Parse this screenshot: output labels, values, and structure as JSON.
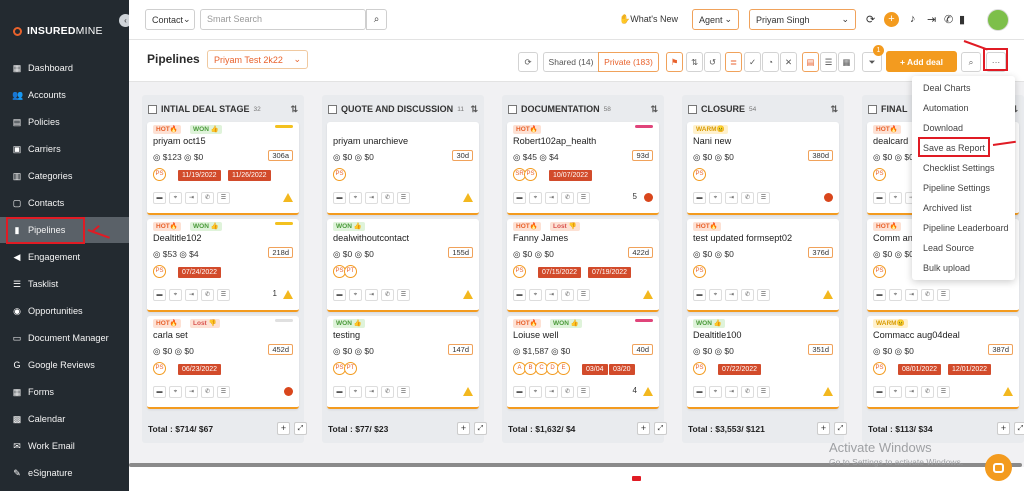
{
  "app": {
    "logo_bold": "INSURED",
    "logo_light": "MINE",
    "collapse": "‹"
  },
  "sidebar": {
    "items": [
      {
        "label": "Dashboard",
        "icon": "dashboard-icon",
        "glyph": "▦"
      },
      {
        "label": "Accounts",
        "icon": "accounts-icon",
        "glyph": "👥"
      },
      {
        "label": "Policies",
        "icon": "policies-icon",
        "glyph": "▤"
      },
      {
        "label": "Carriers",
        "icon": "carriers-icon",
        "glyph": "▣"
      },
      {
        "label": "Categories",
        "icon": "categories-icon",
        "glyph": "▥"
      },
      {
        "label": "Contacts",
        "icon": "contacts-icon",
        "glyph": "▢"
      },
      {
        "label": "Pipelines",
        "icon": "pipelines-icon",
        "glyph": "▮"
      },
      {
        "label": "Engagement",
        "icon": "megaphone-icon",
        "glyph": "◀"
      },
      {
        "label": "Tasklist",
        "icon": "tasklist-icon",
        "glyph": "☰"
      },
      {
        "label": "Opportunities",
        "icon": "opportunities-icon",
        "glyph": "◉"
      },
      {
        "label": "Document Manager",
        "icon": "folder-icon",
        "glyph": "▭"
      },
      {
        "label": "Google Reviews",
        "icon": "google-icon",
        "glyph": "G"
      },
      {
        "label": "Forms",
        "icon": "forms-icon",
        "glyph": "▦"
      },
      {
        "label": "Calendar",
        "icon": "calendar-icon",
        "glyph": "▩"
      },
      {
        "label": "Work Email",
        "icon": "email-icon",
        "glyph": "✉"
      },
      {
        "label": "eSignature",
        "icon": "signature-icon",
        "glyph": "✎"
      }
    ]
  },
  "topbar": {
    "search_scope": "Contact",
    "search_placeholder": "Smart Search",
    "whats_new": "What's New",
    "role": "Agent",
    "user": "Priyam Singh"
  },
  "subbar": {
    "title": "Pipelines",
    "pipeline": "Priyam Test 2k22",
    "shared": "Shared (14)",
    "private": "Private (183)",
    "filter_badge": "1",
    "add_deal": "+ Add deal",
    "more": "···"
  },
  "columns": [
    {
      "name": "INTIAL DEAL STAGE",
      "count": "32",
      "total": "Total : $714/ $67",
      "cards": [
        {
          "tags": [
            {
              "t": "HOT🔥",
              "c": "hot"
            },
            {
              "t": "WON 👍",
              "c": "won"
            }
          ],
          "stripe": "#f3c11f",
          "name": "priyam oct15",
          "money": "◎ $123 ◎ $0",
          "days": "306a",
          "avatars": [
            "PS"
          ],
          "dates": [
            "11/19/2022",
            "11/26/2022"
          ],
          "end": "warn"
        },
        {
          "tags": [
            {
              "t": "HOT🔥",
              "c": "hot"
            },
            {
              "t": "WON 👍",
              "c": "won"
            }
          ],
          "stripe": "#f3c11f",
          "name": "Dealtitle102",
          "money": "◎ $53 ◎ $4",
          "days": "218d",
          "avatars": [
            "PS"
          ],
          "dates": [
            "07/24/2022"
          ],
          "end": "warn",
          "extra": "1"
        },
        {
          "tags": [
            {
              "t": "HOT🔥",
              "c": "hot"
            },
            {
              "t": "Lost 👎",
              "c": "lost"
            }
          ],
          "stripe": "#e0e0e0",
          "name": "carla set",
          "money": "◎ $0 ◎ $0",
          "days": "452d",
          "avatars": [
            "PS"
          ],
          "dates": [
            "06/23/2022"
          ],
          "end": "red"
        }
      ]
    },
    {
      "name": "QUOTE AND DISCUSSION",
      "count": "11",
      "total": "Total : $77/ $23",
      "cards": [
        {
          "tags": [],
          "stripe": "",
          "name": "priyam unarchieve",
          "money": "◎ $0 ◎ $0",
          "days": "30d",
          "avatars": [
            "PS"
          ],
          "dates": [],
          "end": "warn"
        },
        {
          "tags": [
            {
              "t": "WON 👍",
              "c": "won"
            }
          ],
          "stripe": "",
          "name": "dealwithoutcontact",
          "money": "◎ $0 ◎ $0",
          "days": "155d",
          "avatars": [
            "PS",
            "PT"
          ],
          "dates": [],
          "end": "warn"
        },
        {
          "tags": [
            {
              "t": "WON 👍",
              "c": "won"
            }
          ],
          "stripe": "",
          "name": "testing",
          "money": "◎ $0 ◎ $0",
          "days": "147d",
          "avatars": [
            "PS",
            "PT"
          ],
          "dates": [],
          "end": "warn"
        }
      ]
    },
    {
      "name": "DOCUMENTATION",
      "count": "58",
      "total": "Total : $1,632/ $4",
      "cards": [
        {
          "tags": [
            {
              "t": "HOT🔥",
              "c": "hot"
            }
          ],
          "stripe": "#e0447a",
          "name": "Robert102ap_health",
          "money": "◎ $45 ◎ $4",
          "days": "93d",
          "avatars": [
            "SR",
            "PS"
          ],
          "dates": [
            "10/07/2022"
          ],
          "end": "red",
          "extra": "5"
        },
        {
          "tags": [
            {
              "t": "HOT🔥",
              "c": "hot"
            },
            {
              "t": "Lost 👎",
              "c": "lost"
            }
          ],
          "stripe": "",
          "name": "Fanny James",
          "money": "◎ $0 ◎ $0",
          "days": "422d",
          "avatars": [
            "PS"
          ],
          "dates": [
            "07/15/2022",
            "07/19/2022"
          ],
          "end": "warn"
        },
        {
          "tags": [
            {
              "t": "HOT🔥",
              "c": "hot"
            },
            {
              "t": "WON 👍",
              "c": "won"
            }
          ],
          "stripe": "#e0447a",
          "name": "Loiuse well",
          "money": "◎ $1,587 ◎ $0",
          "days": "40d",
          "avatars": [
            "A",
            "B",
            "C",
            "D",
            "E"
          ],
          "dates": [
            "03/04",
            "03/20"
          ],
          "end": "warn",
          "extra": "4"
        }
      ]
    },
    {
      "name": "CLOSURE",
      "count": "54",
      "total": "Total : $3,553/ $121",
      "cards": [
        {
          "tags": [
            {
              "t": "WARM😐",
              "c": "warm"
            }
          ],
          "stripe": "",
          "name": "Nani new",
          "money": "◎ $0 ◎ $0",
          "days": "380d",
          "avatars": [
            "PS"
          ],
          "dates": [],
          "end": "red"
        },
        {
          "tags": [
            {
              "t": "HOT🔥",
              "c": "hot"
            }
          ],
          "stripe": "",
          "name": "test updated formsept02",
          "money": "◎ $0 ◎ $0",
          "days": "376d",
          "avatars": [
            "PS"
          ],
          "dates": [],
          "end": "warn"
        },
        {
          "tags": [
            {
              "t": "WON 👍",
              "c": "won"
            }
          ],
          "stripe": "",
          "name": "Dealtitle100",
          "money": "◎ $0 ◎ $0",
          "days": "351d",
          "avatars": [
            "PS"
          ],
          "dates": [
            "07/22/2022"
          ],
          "end": "warn"
        }
      ]
    },
    {
      "name": "FINAL",
      "count": "",
      "total": "Total : $113/ $34",
      "cards": [
        {
          "tags": [
            {
              "t": "HOT🔥",
              "c": "hot"
            }
          ],
          "stripe": "",
          "name": "dealcard",
          "money": "◎ $0 ◎ $0",
          "days": "",
          "avatars": [
            "PS"
          ],
          "dates": [],
          "end": ""
        },
        {
          "tags": [
            {
              "t": "HOT🔥",
              "c": "hot"
            }
          ],
          "stripe": "",
          "name": "Comm an",
          "money": "◎ $0 ◎ $0",
          "days": "",
          "avatars": [
            "PS"
          ],
          "dates": [],
          "end": ""
        },
        {
          "tags": [
            {
              "t": "WARM😐",
              "c": "warm"
            }
          ],
          "stripe": "",
          "name": "Commacc aug04deal",
          "money": "◎ $0 ◎ $0",
          "days": "387d",
          "avatars": [
            "PS"
          ],
          "dates": [
            "08/01/2022",
            "12/01/2022"
          ],
          "end": "warn"
        }
      ]
    }
  ],
  "dropdown": {
    "items": [
      "Deal Charts",
      "Automation",
      "Download",
      "Save as Report",
      "Checklist Settings",
      "Pipeline Settings",
      "Archived list",
      "Pipeline Leaderboard",
      "Lead Source",
      "Bulk upload"
    ]
  },
  "watermark": {
    "line1": "Activate Windows",
    "line2": "Go to Settings to activate Windows."
  }
}
